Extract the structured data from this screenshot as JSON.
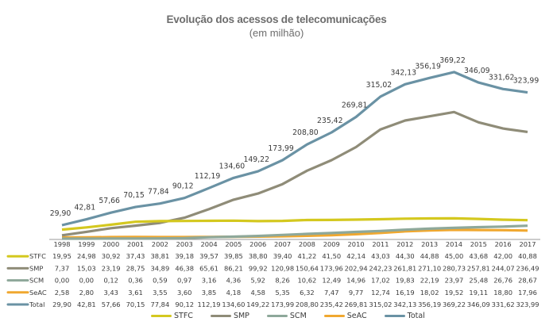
{
  "chart_data": {
    "type": "line",
    "title": "Evolução dos acessos de telecomunicações",
    "subtitle": "(em milhão)",
    "xlabel": "",
    "ylabel": "",
    "ylim": [
      0,
      400
    ],
    "grid": false,
    "legend_position": "bottom",
    "categories": [
      "1998",
      "1999",
      "2000",
      "2001",
      "2002",
      "2003",
      "2004",
      "2005",
      "2006",
      "2007",
      "2008",
      "2009",
      "2010",
      "2011",
      "2012",
      "2013",
      "2014",
      "2015",
      "2016",
      "2017"
    ],
    "series": [
      {
        "name": "STFC",
        "color": "#d4c81f",
        "values": [
          "19,95",
          "24,98",
          "30,92",
          "37,43",
          "38,81",
          "39,18",
          "39,57",
          "39,85",
          "38,80",
          "39,40",
          "41,22",
          "41,50",
          "42,14",
          "43,03",
          "44,30",
          "44,88",
          "45,00",
          "43,68",
          "42,00",
          "40,88"
        ]
      },
      {
        "name": "SMP",
        "color": "#8f8c78",
        "values": [
          "7,37",
          "15,03",
          "23,19",
          "28,75",
          "34,89",
          "46,38",
          "65,61",
          "86,21",
          "99,92",
          "120,98",
          "150,64",
          "173,96",
          "202,94",
          "242,23",
          "261,81",
          "271,10",
          "280,73",
          "257,81",
          "244,07",
          "236,49"
        ]
      },
      {
        "name": "SCM",
        "color": "#8ea89a",
        "values": [
          "0,00",
          "0,00",
          "0,12",
          "0,36",
          "0,59",
          "0,97",
          "3,16",
          "4,36",
          "5,92",
          "8,26",
          "10,62",
          "12,49",
          "14,96",
          "17,02",
          "19,83",
          "22,19",
          "23,97",
          "25,48",
          "26,76",
          "28,67"
        ]
      },
      {
        "name": "SeAC",
        "color": "#f0a830",
        "values": [
          "2,58",
          "2,80",
          "3,43",
          "3,61",
          "3,55",
          "3,60",
          "3,85",
          "4,18",
          "4,58",
          "5,35",
          "6,32",
          "7,47",
          "9,77",
          "12,74",
          "16,19",
          "18,02",
          "19,52",
          "19,11",
          "18,80",
          "17,96"
        ]
      },
      {
        "name": "Total",
        "color": "#6a92a4",
        "values": [
          "29,90",
          "42,81",
          "57,66",
          "70,15",
          "77,84",
          "90,12",
          "112,19",
          "134,60",
          "149,22",
          "173,99",
          "208,80",
          "235,42",
          "269,81",
          "315,02",
          "342,13",
          "356,19",
          "369,22",
          "346,09",
          "331,62",
          "323,99"
        ]
      }
    ],
    "data_labels_series": "Total"
  }
}
